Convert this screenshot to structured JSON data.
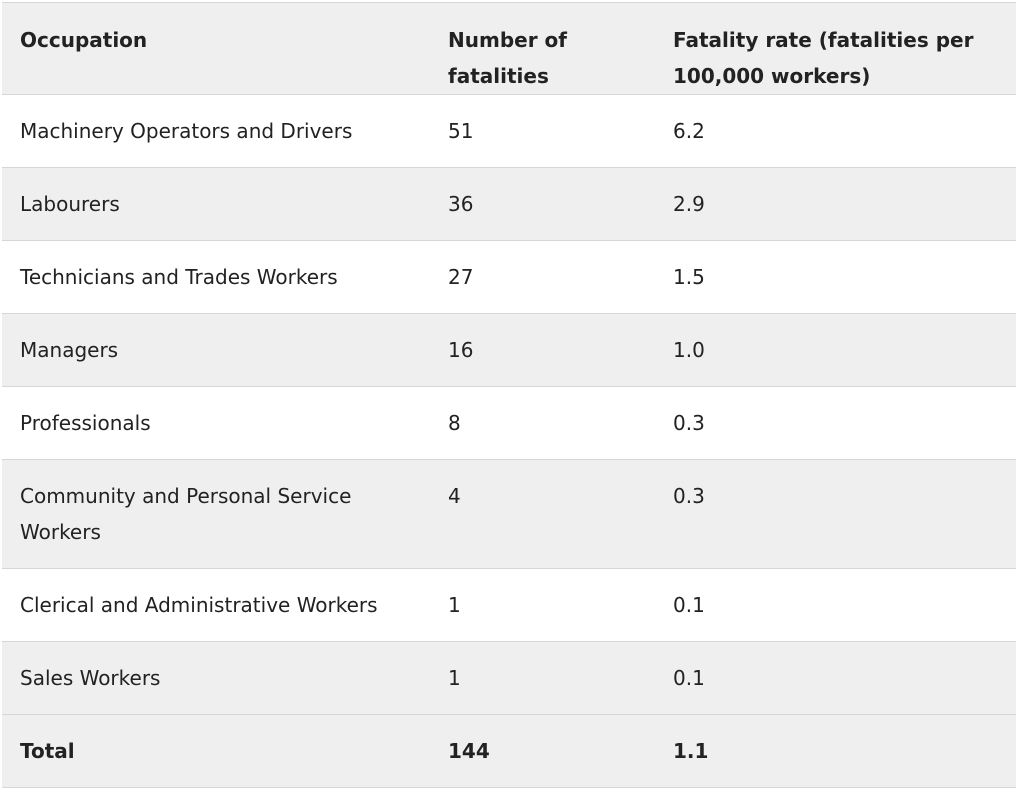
{
  "table": {
    "headers": [
      "Occupation",
      "Number of fatalities",
      "Fatality rate (fatalities per 100,000 workers)"
    ],
    "rows": [
      [
        "Machinery Operators and Drivers",
        "51",
        "6.2"
      ],
      [
        "Labourers",
        "36",
        "2.9"
      ],
      [
        "Technicians and Trades Workers",
        "27",
        "1.5"
      ],
      [
        "Managers",
        "16",
        "1.0"
      ],
      [
        "Professionals",
        "8",
        "0.3"
      ],
      [
        "Community and Personal Service Workers",
        "4",
        "0.3"
      ],
      [
        "Clerical and Administrative Workers",
        "1",
        "0.1"
      ],
      [
        "Sales Workers",
        "1",
        "0.1"
      ]
    ],
    "total": [
      "Total",
      "144",
      "1.1"
    ]
  },
  "colors": {
    "header_bg": "#efefef",
    "shaded_row_bg": "#efefef",
    "row_bg": "#ffffff",
    "border": "#d6d6d6",
    "text": "#222222"
  }
}
